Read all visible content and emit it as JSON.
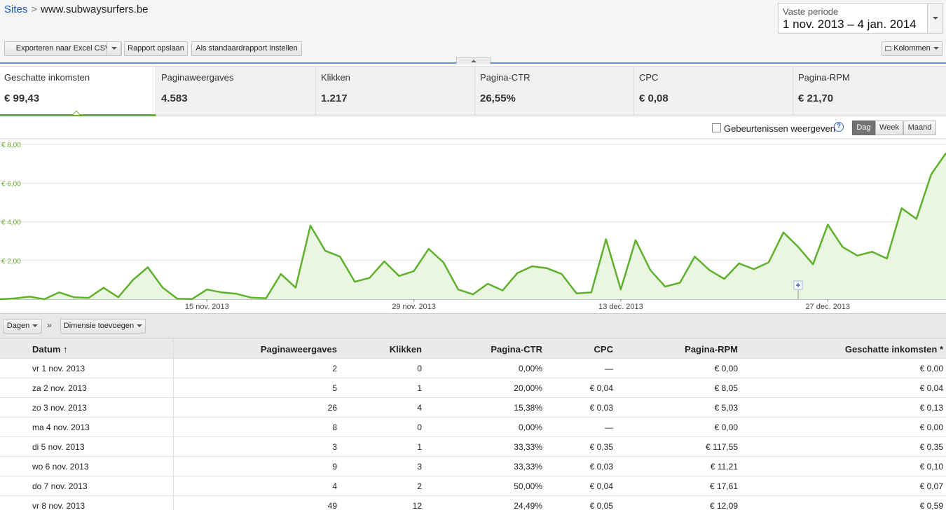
{
  "breadcrumb": {
    "root": "Sites",
    "separator": ">",
    "current": "www.subwaysurfers.be"
  },
  "period": {
    "label": "Vaste periode",
    "value": "1 nov. 2013 – 4 jan. 2014"
  },
  "toolbar": {
    "export_label": "Exporteren naar Excel CSV",
    "save_label": "Rapport opslaan",
    "default_label": "Als standaardrapport instellen",
    "columns_label": "Kolommen"
  },
  "metrics": [
    {
      "label": "Geschatte inkomsten",
      "value": "€ 99,43"
    },
    {
      "label": "Paginaweergaves",
      "value": "4.583"
    },
    {
      "label": "Klikken",
      "value": "1.217"
    },
    {
      "label": "Pagina-CTR",
      "value": "26,55%"
    },
    {
      "label": "CPC",
      "value": "€ 0,08"
    },
    {
      "label": "Pagina-RPM",
      "value": "€ 21,70"
    }
  ],
  "chart_controls": {
    "events_label": "Gebeurtenissen weergeven",
    "help_icon": "?",
    "granularity": [
      "Dag",
      "Week",
      "Maand"
    ],
    "selected": "Dag"
  },
  "chart_data": {
    "type": "area",
    "ylim": [
      0,
      8
    ],
    "yticks": [
      "€ 8,00",
      "€ 6,00",
      "€ 4,00",
      "€ 2,00"
    ],
    "xticks": [
      "15 nov. 2013",
      "29 nov. 2013",
      "13 dec. 2013",
      "27 dec. 2013"
    ],
    "color": "#5fb12c",
    "values": [
      0.0,
      0.04,
      0.13,
      0.0,
      0.35,
      0.1,
      0.07,
      0.59,
      0.1,
      1.0,
      1.65,
      0.6,
      0.02,
      0.01,
      0.5,
      0.35,
      0.28,
      0.08,
      0.05,
      1.3,
      0.6,
      3.8,
      2.5,
      2.2,
      0.9,
      1.1,
      1.95,
      1.2,
      1.45,
      2.6,
      1.9,
      0.5,
      0.25,
      0.8,
      0.45,
      1.35,
      1.7,
      1.6,
      1.3,
      0.3,
      0.35,
      3.1,
      0.5,
      3.05,
      1.5,
      0.65,
      0.85,
      2.2,
      1.5,
      1.05,
      1.85,
      1.55,
      1.9,
      3.45,
      2.7,
      1.8,
      3.85,
      2.7,
      2.25,
      2.45,
      2.1,
      4.7,
      4.15,
      6.45,
      7.55
    ]
  },
  "table_controls": {
    "dimension_label": "Dagen",
    "add_dimension_label": "Dimensie toevoegen",
    "arrow": "»"
  },
  "table": {
    "headers": [
      "Datum ↑",
      "Paginaweergaves",
      "Klikken",
      "Pagina-CTR",
      "CPC",
      "Pagina-RPM",
      "Geschatte inkomsten *"
    ],
    "rows": [
      [
        "vr 1 nov. 2013",
        "2",
        "0",
        "0,00%",
        "—",
        "€ 0,00",
        "€ 0,00"
      ],
      [
        "za 2 nov. 2013",
        "5",
        "1",
        "20,00%",
        "€ 0,04",
        "€ 8,05",
        "€ 0,04"
      ],
      [
        "zo 3 nov. 2013",
        "26",
        "4",
        "15,38%",
        "€ 0,03",
        "€ 5,03",
        "€ 0,13"
      ],
      [
        "ma 4 nov. 2013",
        "8",
        "0",
        "0,00%",
        "—",
        "€ 0,00",
        "€ 0,00"
      ],
      [
        "di 5 nov. 2013",
        "3",
        "1",
        "33,33%",
        "€ 0,35",
        "€ 117,55",
        "€ 0,35"
      ],
      [
        "wo 6 nov. 2013",
        "9",
        "3",
        "33,33%",
        "€ 0,03",
        "€ 11,21",
        "€ 0,10"
      ],
      [
        "do 7 nov. 2013",
        "4",
        "2",
        "50,00%",
        "€ 0,04",
        "€ 17,61",
        "€ 0,07"
      ],
      [
        "vr 8 nov. 2013",
        "49",
        "12",
        "24,49%",
        "€ 0,05",
        "€ 12,09",
        "€ 0,59"
      ]
    ]
  }
}
